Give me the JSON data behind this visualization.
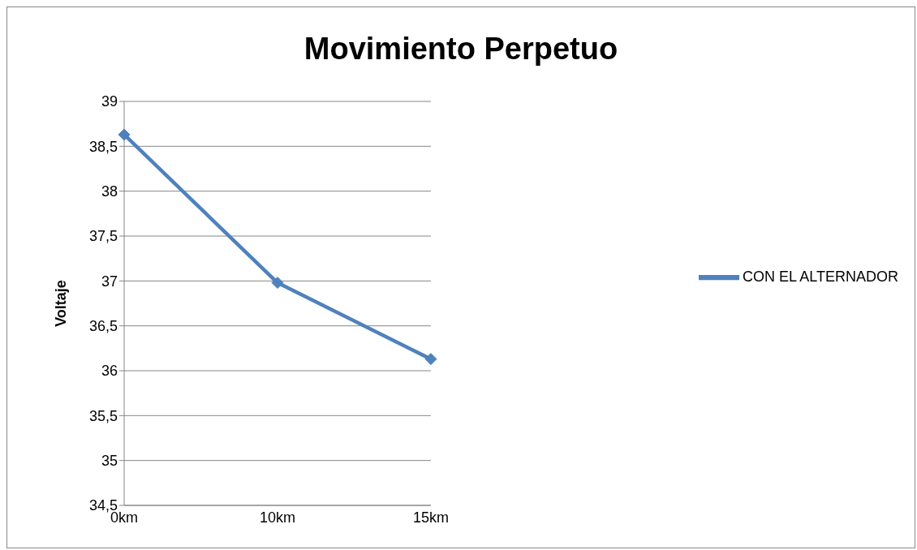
{
  "chart_data": {
    "type": "line",
    "title": "Movimiento Perpetuo",
    "ylabel": "Voltaje",
    "categories": [
      "0km",
      "10km",
      "15km"
    ],
    "series": [
      {
        "name": "CON EL ALTERNADOR",
        "color": "#4f81bd",
        "values": [
          38.63,
          36.98,
          36.13
        ]
      }
    ],
    "ylim": [
      34.5,
      39
    ],
    "yticks": [
      {
        "value": 34.5,
        "label": "34,5"
      },
      35,
      {
        "value": 35.5,
        "label": "35,5"
      },
      36,
      {
        "value": 36.5,
        "label": "36,5"
      },
      37,
      {
        "value": 37.5,
        "label": "37,5"
      },
      38,
      {
        "value": 38.5,
        "label": "38,5"
      },
      39
    ],
    "grid": "y",
    "legend": "right",
    "marker": "diamond",
    "line_style": "solid"
  }
}
